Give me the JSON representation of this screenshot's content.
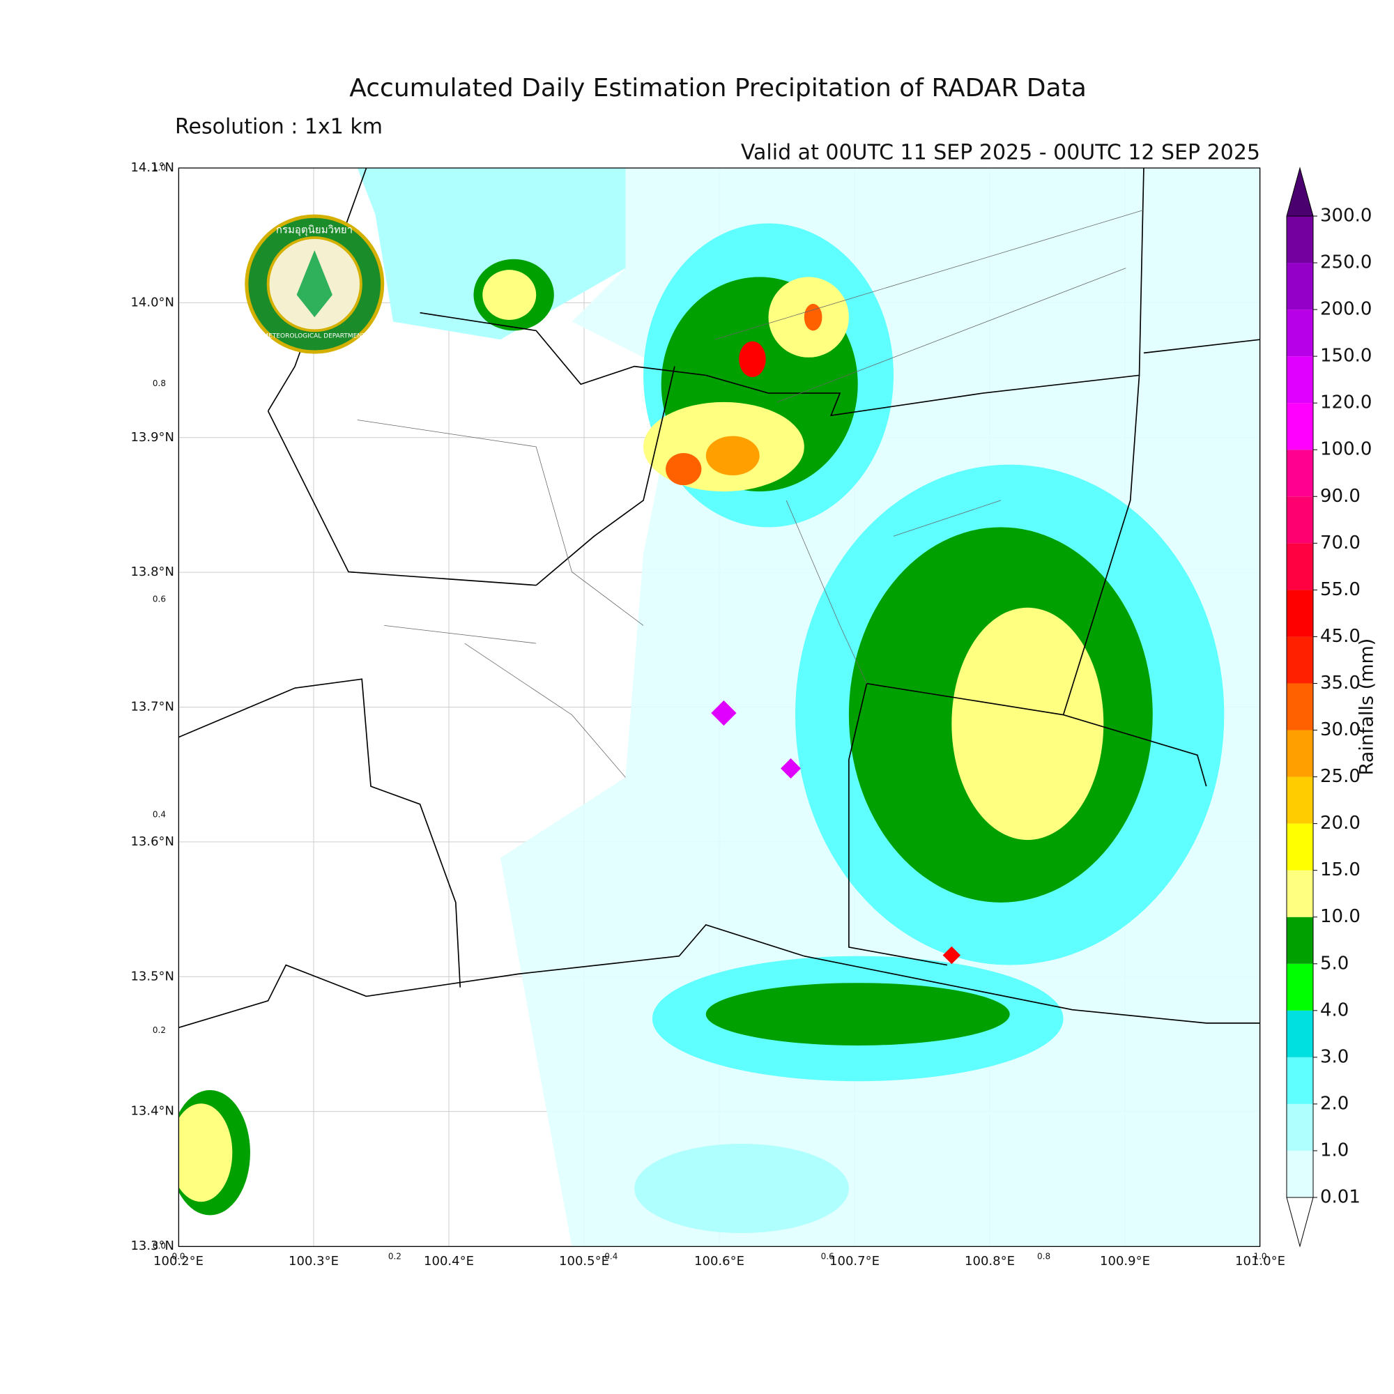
{
  "header": {
    "title": "Accumulated Daily Estimation Precipitation of RADAR Data",
    "subtitle": "Resolution : 1x1 km",
    "valid": "Valid at 00UTC 11 SEP 2025 - 00UTC 12 SEP 2025"
  },
  "logo": {
    "thai": "กรมอุตุนิยมวิทยา",
    "english": "METEOROLOGICAL DEPARTMENT"
  },
  "map": {
    "xlim": [
      100.2,
      101.0
    ],
    "ylim": [
      13.3,
      14.1
    ],
    "grid": true,
    "yticks": [
      {
        "value": 14.1,
        "label": "14.1°N"
      },
      {
        "value": 14.0,
        "label": "14.0°N"
      },
      {
        "value": 13.9,
        "label": "13.9°N"
      },
      {
        "value": 13.8,
        "label": "13.8°N"
      },
      {
        "value": 13.7,
        "label": "13.7°N"
      },
      {
        "value": 13.6,
        "label": "13.6°N"
      },
      {
        "value": 13.5,
        "label": "13.5°N"
      },
      {
        "value": 13.4,
        "label": "13.4°N"
      },
      {
        "value": 13.3,
        "label": "13.3°N"
      }
    ],
    "xticks": [
      {
        "value": 100.2,
        "label": "100.2°E"
      },
      {
        "value": 100.3,
        "label": "100.3°E"
      },
      {
        "value": 100.4,
        "label": "100.4°E"
      },
      {
        "value": 100.5,
        "label": "100.5°E"
      },
      {
        "value": 100.6,
        "label": "100.6°E"
      },
      {
        "value": 100.7,
        "label": "100.7°E"
      },
      {
        "value": 100.8,
        "label": "100.8°E"
      },
      {
        "value": 100.9,
        "label": "100.9°E"
      },
      {
        "value": 101.0,
        "label": "101.0°E"
      }
    ],
    "stray_yticks": [
      {
        "value": 14.1,
        "label": "1.0"
      },
      {
        "value": 13.94,
        "label": "0.8"
      },
      {
        "value": 13.78,
        "label": "0.6"
      },
      {
        "value": 13.62,
        "label": "0.4"
      },
      {
        "value": 13.46,
        "label": "0.2"
      },
      {
        "value": 13.3,
        "label": "0.0"
      }
    ],
    "stray_xticks": [
      {
        "value": 100.2,
        "label": "0.0"
      },
      {
        "value": 100.36,
        "label": "0.2"
      },
      {
        "value": 100.52,
        "label": "0.4"
      },
      {
        "value": 100.68,
        "label": "0.6"
      },
      {
        "value": 100.84,
        "label": "0.8"
      },
      {
        "value": 101.0,
        "label": "1.0"
      }
    ]
  },
  "colorbar": {
    "label": "Rainfalls (mm)",
    "levels": [
      0.01,
      {
        "value": 1,
        "label": "1.0"
      },
      {
        "value": 2,
        "label": "2.0"
      },
      {
        "value": 3,
        "label": "3.0"
      },
      {
        "value": 4,
        "label": "4.0"
      },
      {
        "value": 5,
        "label": "5.0"
      },
      {
        "value": 10,
        "label": "10.0"
      },
      {
        "value": 15,
        "label": "15.0"
      },
      {
        "value": 20,
        "label": "20.0"
      },
      {
        "value": 25,
        "label": "25.0"
      },
      {
        "value": 30,
        "label": "30.0"
      },
      {
        "value": 35,
        "label": "35.0"
      },
      {
        "value": 45,
        "label": "45.0"
      },
      {
        "value": 55,
        "label": "55.0"
      },
      {
        "value": 70,
        "label": "70.0"
      },
      {
        "value": 90,
        "label": "90.0"
      },
      {
        "value": 100,
        "label": "100.0"
      },
      {
        "value": 120,
        "label": "120.0"
      },
      {
        "value": 150,
        "label": "150.0"
      },
      {
        "value": 200,
        "label": "200.0"
      },
      {
        "value": 250,
        "label": "250.0"
      },
      {
        "value": 300,
        "label": "300.0"
      }
    ],
    "colors": [
      "#e0ffff",
      "#b0ffff",
      "#60ffff",
      "#00e0e0",
      "#00ff00",
      "#00a000",
      "#ffff80",
      "#ffff00",
      "#ffcc00",
      "#ffa000",
      "#ff6000",
      "#ff2000",
      "#ff0000",
      "#ff0040",
      "#ff0070",
      "#ff0090",
      "#ff00ff",
      "#e000ff",
      "#b800e8",
      "#9400c8",
      "#7400a0"
    ],
    "extend_colors": [
      "#ffffff",
      "#4b0070"
    ]
  }
}
